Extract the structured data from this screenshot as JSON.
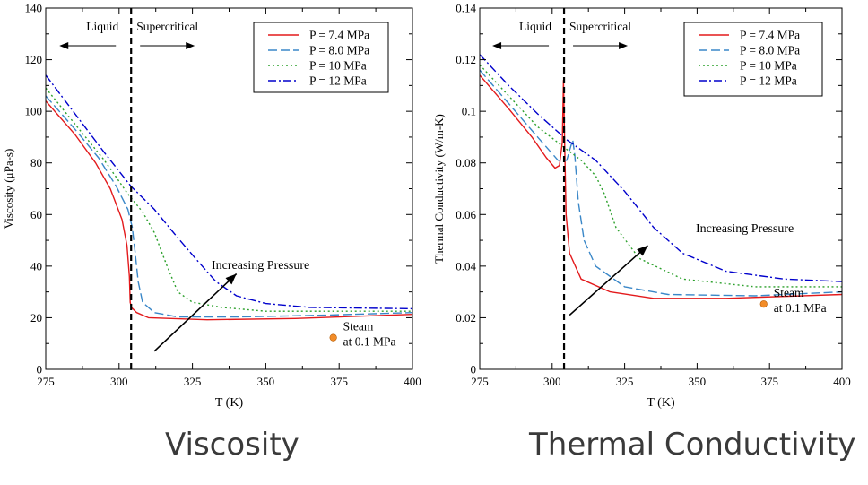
{
  "captions": {
    "left": "Viscosity",
    "right": "Thermal Conductivity"
  },
  "colors": {
    "series": [
      "#e31a1c",
      "#3a87c8",
      "#2ca02c",
      "#0000cc"
    ],
    "marker": "#f28c28"
  },
  "chart_data": [
    {
      "type": "line",
      "title": "",
      "xlabel": "T (K)",
      "ylabel": "Viscosity (μPa-s)",
      "xlim": [
        275,
        400
      ],
      "ylim": [
        0,
        140
      ],
      "xticks": [
        275,
        300,
        325,
        350,
        375,
        400
      ],
      "yticks": [
        0,
        20,
        40,
        60,
        80,
        100,
        120,
        140
      ],
      "ytick_labels": [
        "0",
        "20",
        "40",
        "60",
        "80",
        "100",
        "120",
        "140"
      ],
      "grid": false,
      "legend": "top-right",
      "critical_line_x": 304.1,
      "region_labels": [
        "Liquid",
        "Supercritical"
      ],
      "annotation": "Increasing Pressure",
      "arrow": [
        [
          312,
          7
        ],
        [
          340,
          37
        ]
      ],
      "marker": {
        "x": 373,
        "y": 12.3,
        "label": [
          "Steam",
          "at 0.1 MPa"
        ]
      },
      "series": [
        {
          "name": "P = 7.4 MPa",
          "dash": "solid",
          "points": [
            [
              275,
              104
            ],
            [
              285,
              91
            ],
            [
              292,
              80
            ],
            [
              297,
              70
            ],
            [
              301,
              58
            ],
            [
              302.7,
              48
            ],
            [
              303.5,
              36
            ],
            [
              303.8,
              26
            ],
            [
              304.2,
              24
            ],
            [
              306,
              22
            ],
            [
              310,
              20
            ],
            [
              330,
              19.2
            ],
            [
              360,
              19.7
            ],
            [
              400,
              21.3
            ]
          ]
        },
        {
          "name": "P = 8.0 MPa",
          "dash": "longdash",
          "points": [
            [
              275,
              106
            ],
            [
              285,
              93
            ],
            [
              293,
              82
            ],
            [
              299,
              71
            ],
            [
              303,
              62
            ],
            [
              304.5,
              55
            ],
            [
              305.5,
              45
            ],
            [
              306.5,
              34
            ],
            [
              308,
              26
            ],
            [
              312,
              22
            ],
            [
              320,
              20.3
            ],
            [
              340,
              20.3
            ],
            [
              370,
              21
            ],
            [
              400,
              22
            ]
          ]
        },
        {
          "name": "P = 10 MPa",
          "dash": "dotted",
          "points": [
            [
              275,
              109
            ],
            [
              285,
              95
            ],
            [
              295,
              81
            ],
            [
              303,
              68
            ],
            [
              308,
              61
            ],
            [
              312,
              53
            ],
            [
              316,
              41
            ],
            [
              320,
              30
            ],
            [
              325,
              26
            ],
            [
              335,
              24
            ],
            [
              350,
              22.5
            ],
            [
              400,
              22.5
            ]
          ]
        },
        {
          "name": "P = 12 MPa",
          "dash": "dashdot",
          "points": [
            [
              275,
              114
            ],
            [
              285,
              99
            ],
            [
              295,
              84
            ],
            [
              304,
              71
            ],
            [
              312,
              62
            ],
            [
              320,
              51
            ],
            [
              326,
              43
            ],
            [
              333,
              34
            ],
            [
              340,
              28.5
            ],
            [
              350,
              25.5
            ],
            [
              365,
              24
            ],
            [
              400,
              23.5
            ]
          ]
        }
      ]
    },
    {
      "type": "line",
      "title": "",
      "xlabel": "T (K)",
      "ylabel": "Thermal Conductivity (W/m-K)",
      "xlim": [
        275,
        400
      ],
      "ylim": [
        0,
        0.14
      ],
      "xticks": [
        275,
        300,
        325,
        350,
        375,
        400
      ],
      "yticks": [
        0,
        0.02,
        0.04,
        0.06,
        0.08,
        0.1,
        0.12,
        0.14
      ],
      "ytick_labels": [
        "0",
        "0.02",
        "0.04",
        "0.06",
        "0.08",
        "0.1",
        "0.12",
        "0.14"
      ],
      "grid": false,
      "legend": "top-right",
      "critical_line_x": 304.1,
      "region_labels": [
        "Liquid",
        "Supercritical"
      ],
      "annotation": "Increasing Pressure",
      "arrow": [
        [
          306,
          0.021
        ],
        [
          333,
          0.048
        ]
      ],
      "marker": {
        "x": 373,
        "y": 0.0253,
        "label": [
          "Steam",
          "at 0.1 MPa"
        ]
      },
      "series": [
        {
          "name": "P = 7.4 MPa",
          "dash": "solid",
          "points": [
            [
              275,
              0.114
            ],
            [
              285,
              0.101
            ],
            [
              293,
              0.09
            ],
            [
              298,
              0.082
            ],
            [
              301,
              0.078
            ],
            [
              302.5,
              0.079
            ],
            [
              303.5,
              0.088
            ],
            [
              303.9,
              0.112
            ],
            [
              304.3,
              0.088
            ],
            [
              304.8,
              0.06
            ],
            [
              306,
              0.045
            ],
            [
              310,
              0.035
            ],
            [
              320,
              0.03
            ],
            [
              335,
              0.0275
            ],
            [
              360,
              0.0275
            ],
            [
              400,
              0.029
            ]
          ]
        },
        {
          "name": "P = 8.0 MPa",
          "dash": "longdash",
          "points": [
            [
              275,
              0.116
            ],
            [
              285,
              0.103
            ],
            [
              295,
              0.09
            ],
            [
              302,
              0.081
            ],
            [
              305,
              0.081
            ],
            [
              306.3,
              0.086
            ],
            [
              307.1,
              0.089
            ],
            [
              307.8,
              0.083
            ],
            [
              309,
              0.065
            ],
            [
              311,
              0.05
            ],
            [
              315,
              0.04
            ],
            [
              325,
              0.032
            ],
            [
              340,
              0.029
            ],
            [
              370,
              0.0285
            ],
            [
              400,
              0.03
            ]
          ]
        },
        {
          "name": "P = 10 MPa",
          "dash": "dotted",
          "points": [
            [
              275,
              0.118
            ],
            [
              285,
              0.106
            ],
            [
              295,
              0.094
            ],
            [
              303,
              0.087
            ],
            [
              310,
              0.081
            ],
            [
              315,
              0.075
            ],
            [
              318,
              0.068
            ],
            [
              322,
              0.055
            ],
            [
              330,
              0.043
            ],
            [
              345,
              0.035
            ],
            [
              370,
              0.032
            ],
            [
              400,
              0.032
            ]
          ]
        },
        {
          "name": "P = 12 MPa",
          "dash": "dashdot",
          "points": [
            [
              275,
              0.122
            ],
            [
              285,
              0.11
            ],
            [
              295,
              0.099
            ],
            [
              305,
              0.089
            ],
            [
              315,
              0.081
            ],
            [
              325,
              0.069
            ],
            [
              335,
              0.055
            ],
            [
              345,
              0.045
            ],
            [
              360,
              0.038
            ],
            [
              380,
              0.035
            ],
            [
              400,
              0.034
            ]
          ]
        }
      ]
    }
  ]
}
